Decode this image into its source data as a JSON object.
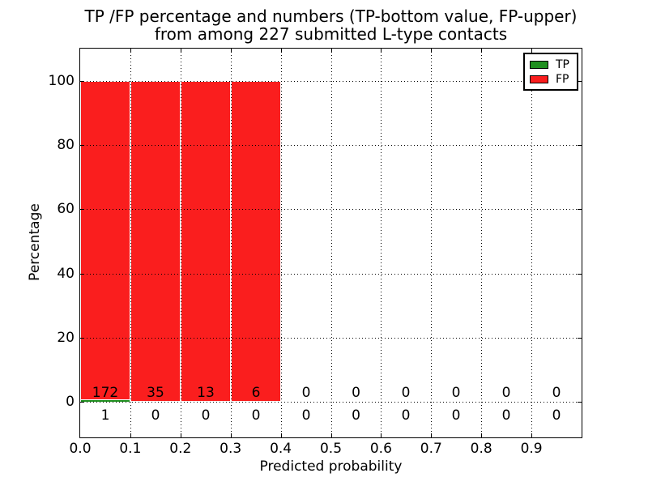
{
  "title": {
    "line1": "TP /FP percentage and numbers (TP-bottom value, FP-upper)",
    "line2": "from among 227 submitted L-type contacts"
  },
  "chart_data": {
    "type": "bar",
    "stacked": true,
    "title": "TP /FP percentage and numbers (TP-bottom value, FP-upper) from among 227 submitted L-type contacts",
    "xlabel": "Predicted probability",
    "ylabel": "Percentage",
    "xlim": [
      0.0,
      1.0
    ],
    "ylim": [
      -11,
      110
    ],
    "xticks": [
      "0.0",
      "0.1",
      "0.2",
      "0.3",
      "0.4",
      "0.5",
      "0.6",
      "0.7",
      "0.8",
      "0.9"
    ],
    "yticks": [
      0,
      20,
      40,
      60,
      80,
      100
    ],
    "grid": "dotted",
    "bin_width": 0.1,
    "bin_starts": [
      0.0,
      0.1,
      0.2,
      0.3,
      0.4,
      0.5,
      0.6,
      0.7,
      0.8,
      0.9
    ],
    "series": [
      {
        "name": "TP",
        "color": "#1f8f1f",
        "counts": [
          1,
          0,
          0,
          0,
          0,
          0,
          0,
          0,
          0,
          0
        ]
      },
      {
        "name": "FP",
        "color": "#fa1e1e",
        "counts": [
          172,
          35,
          13,
          6,
          0,
          0,
          0,
          0,
          0,
          0
        ]
      }
    ],
    "total_contacts": 227,
    "legend": {
      "position": "upper right",
      "entries": [
        {
          "label": "TP",
          "color": "#1f8f1f"
        },
        {
          "label": "FP",
          "color": "#fa1e1e"
        }
      ]
    },
    "colors": {
      "bar_edge": "#ffffff",
      "grid": "#000000",
      "spine": "#000000",
      "text": "#000000"
    }
  }
}
